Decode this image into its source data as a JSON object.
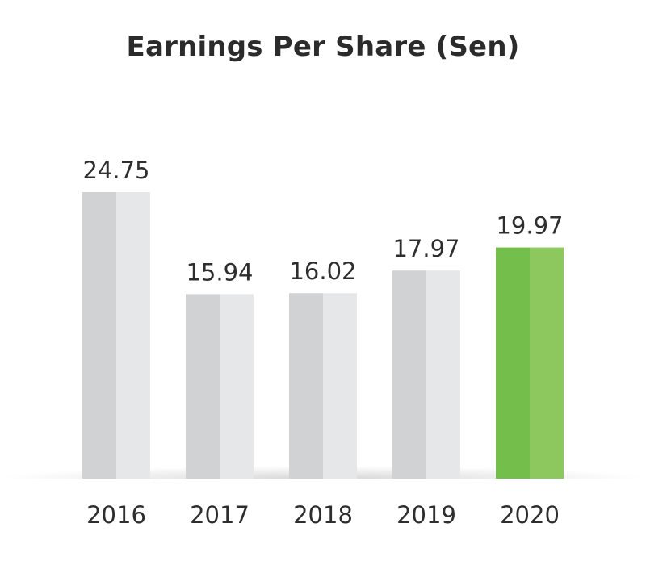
{
  "chart_data": {
    "type": "bar",
    "title": "Earnings Per Share (Sen)",
    "xlabel": "",
    "ylabel": "",
    "categories": [
      "2016",
      "2017",
      "2018",
      "2019",
      "2020"
    ],
    "values": [
      24.75,
      15.94,
      16.02,
      17.97,
      19.97
    ],
    "data_labels": [
      "24.75",
      "15.94",
      "16.02",
      "17.97",
      "19.97"
    ],
    "ylim": [
      0,
      24.75
    ],
    "grid": false,
    "legend": "none",
    "highlight_category": "2020",
    "colors": {
      "bar_default_dark": "#d1d2d4",
      "bar_default_light": "#e6e7e8",
      "bar_highlight_dark": "#74bf4b",
      "bar_highlight_light": "#8dc85f",
      "text": "#2e2e2e"
    }
  }
}
